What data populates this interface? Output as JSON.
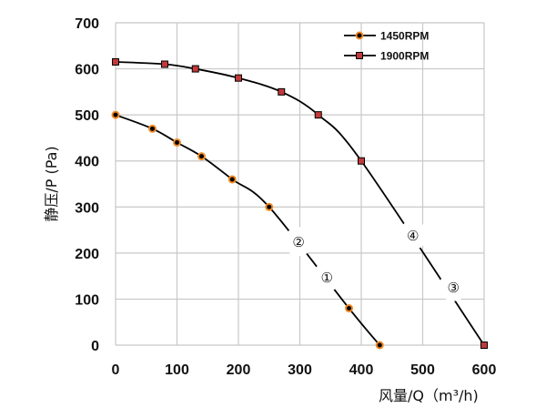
{
  "chart_data": {
    "type": "line",
    "xlabel": "风量/Q（m³/h)",
    "ylabel": "静压/P (Pa)",
    "xlim": [
      0,
      600
    ],
    "ylim": [
      0,
      700
    ],
    "xticks": [
      "0",
      "100",
      "200",
      "300",
      "400",
      "500",
      "600"
    ],
    "yticks": [
      "0",
      "100",
      "200",
      "300",
      "400",
      "500",
      "600",
      "700"
    ],
    "grid": true,
    "legend_position": "top-right",
    "series": [
      {
        "name": "1450RPM",
        "marker": "circle",
        "marker_color": "#f08a24",
        "line_color": "#000000",
        "x": [
          0,
          60,
          100,
          140,
          190,
          250,
          380,
          430
        ],
        "y": [
          500,
          470,
          440,
          410,
          360,
          300,
          80,
          0
        ]
      },
      {
        "name": "1900RPM",
        "marker": "square",
        "marker_color": "#c0393b",
        "line_color": "#000000",
        "x": [
          0,
          80,
          130,
          200,
          270,
          330,
          400,
          600
        ],
        "y": [
          615,
          610,
          600,
          580,
          550,
          500,
          400,
          0
        ]
      }
    ],
    "annotations": [
      {
        "text": "②",
        "x": 298,
        "y": 225
      },
      {
        "text": "①",
        "x": 344,
        "y": 148
      },
      {
        "text": "④",
        "x": 484,
        "y": 239
      },
      {
        "text": "③",
        "x": 550,
        "y": 127
      }
    ]
  }
}
